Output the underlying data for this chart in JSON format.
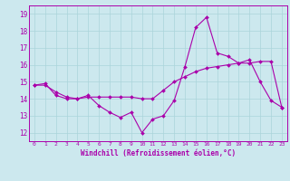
{
  "xlabel": "Windchill (Refroidissement éolien,°C)",
  "xlim": [
    -0.5,
    23.5
  ],
  "ylim": [
    11.5,
    19.5
  ],
  "yticks": [
    12,
    13,
    14,
    15,
    16,
    17,
    18,
    19
  ],
  "xticks": [
    0,
    1,
    2,
    3,
    4,
    5,
    6,
    7,
    8,
    9,
    10,
    11,
    12,
    13,
    14,
    15,
    16,
    17,
    18,
    19,
    20,
    21,
    22,
    23
  ],
  "bg_color": "#cce8ee",
  "grid_color": "#aad4da",
  "line_color": "#aa00aa",
  "line1_x": [
    0,
    1,
    2,
    3,
    4,
    5,
    6,
    7,
    8,
    9,
    10,
    11,
    12,
    13,
    14,
    15,
    16,
    17,
    18,
    19,
    20,
    21,
    22,
    23
  ],
  "line1_y": [
    14.8,
    14.9,
    14.2,
    14.0,
    14.0,
    14.2,
    13.6,
    13.2,
    12.9,
    13.2,
    12.0,
    12.8,
    13.0,
    13.9,
    15.9,
    18.2,
    18.8,
    16.7,
    16.5,
    16.1,
    16.3,
    15.0,
    13.9,
    13.5
  ],
  "line2_x": [
    0,
    1,
    2,
    3,
    4,
    5,
    6,
    7,
    8,
    9,
    10,
    11,
    12,
    13,
    14,
    15,
    16,
    17,
    18,
    19,
    20,
    21,
    22,
    23
  ],
  "line2_y": [
    14.8,
    14.8,
    14.4,
    14.1,
    14.0,
    14.1,
    14.1,
    14.1,
    14.1,
    14.1,
    14.0,
    14.0,
    14.5,
    15.0,
    15.3,
    15.6,
    15.8,
    15.9,
    16.0,
    16.1,
    16.1,
    16.2,
    16.2,
    13.5
  ]
}
